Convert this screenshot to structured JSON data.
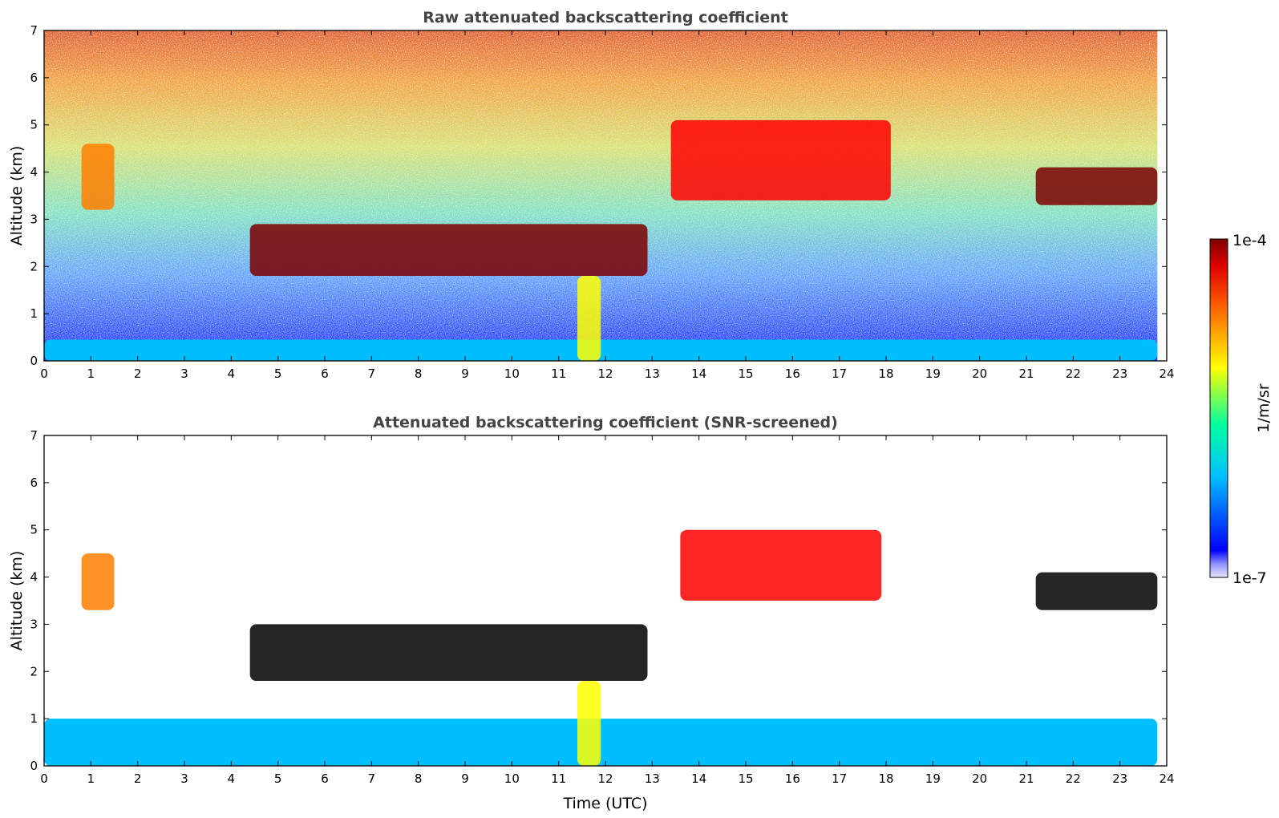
{
  "chart_data": [
    {
      "type": "heatmap",
      "title": "Raw attenuated backscattering coefficient",
      "xlabel": "",
      "ylabel": "Altitude (km)",
      "xlim": [
        0,
        24
      ],
      "ylim": [
        0,
        7
      ],
      "xticks": [
        0,
        1,
        2,
        3,
        4,
        5,
        6,
        7,
        8,
        9,
        10,
        11,
        12,
        13,
        14,
        15,
        16,
        17,
        18,
        19,
        20,
        21,
        22,
        23,
        24
      ],
      "yticks": [
        0,
        1,
        2,
        3,
        4,
        5,
        6,
        7
      ],
      "features": [
        {
          "kind": "boundary_layer",
          "x": [
            0,
            23.8
          ],
          "y": [
            0,
            0.45
          ],
          "level": 0.22
        },
        {
          "kind": "cloud_layer",
          "x": [
            4.4,
            12.9
          ],
          "y": [
            1.8,
            2.9
          ],
          "level": 1.0
        },
        {
          "kind": "cloud_layer",
          "x": [
            21.2,
            23.8
          ],
          "y": [
            3.3,
            4.1
          ],
          "level": 1.0
        },
        {
          "kind": "precipitation",
          "x": [
            11.4,
            11.9
          ],
          "y": [
            0,
            1.8
          ],
          "level": 0.55
        },
        {
          "kind": "aerosol_patch",
          "x": [
            0.8,
            1.5
          ],
          "y": [
            3.2,
            4.6
          ],
          "level": 0.6
        },
        {
          "kind": "thin_cloud",
          "x": [
            13.4,
            18.1
          ],
          "y": [
            3.4,
            5.1
          ],
          "level": 0.8
        }
      ]
    },
    {
      "type": "heatmap",
      "title": "Attenuated backscattering coefficient (SNR-screened)",
      "xlabel": "Time (UTC)",
      "ylabel": "Altitude (km)",
      "xlim": [
        0,
        24
      ],
      "ylim": [
        0,
        7
      ],
      "xticks": [
        0,
        1,
        2,
        3,
        4,
        5,
        6,
        7,
        8,
        9,
        10,
        11,
        12,
        13,
        14,
        15,
        16,
        17,
        18,
        19,
        20,
        21,
        22,
        23,
        24
      ],
      "yticks": [
        0,
        1,
        2,
        3,
        4,
        5,
        6,
        7
      ],
      "features": [
        {
          "kind": "boundary_layer",
          "x": [
            0,
            23.8
          ],
          "y": [
            0,
            1.0
          ],
          "level": 0.2
        },
        {
          "kind": "cloud_layer",
          "x": [
            4.4,
            12.9
          ],
          "y": [
            1.8,
            3.0
          ],
          "level": 1.0
        },
        {
          "kind": "cloud_layer",
          "x": [
            21.2,
            23.8
          ],
          "y": [
            3.3,
            4.1
          ],
          "level": 1.0
        },
        {
          "kind": "precipitation",
          "x": [
            11.4,
            11.9
          ],
          "y": [
            0,
            1.8
          ],
          "level": 0.55
        },
        {
          "kind": "aerosol_patch",
          "x": [
            0.8,
            1.5
          ],
          "y": [
            3.3,
            4.5
          ],
          "level": 0.6
        },
        {
          "kind": "thin_cloud",
          "x": [
            13.6,
            17.9
          ],
          "y": [
            3.5,
            5.0
          ],
          "level": 0.8
        }
      ]
    }
  ],
  "colorbar": {
    "label": "1/m/sr",
    "max_label": "1e-4",
    "min_label": "1e-7",
    "colormap": "jet",
    "stops": [
      "#e6e6fa",
      "#0000ff",
      "#00bfff",
      "#00ff7f",
      "#ffff00",
      "#ff7f00",
      "#ff0000",
      "#8b0000"
    ]
  }
}
